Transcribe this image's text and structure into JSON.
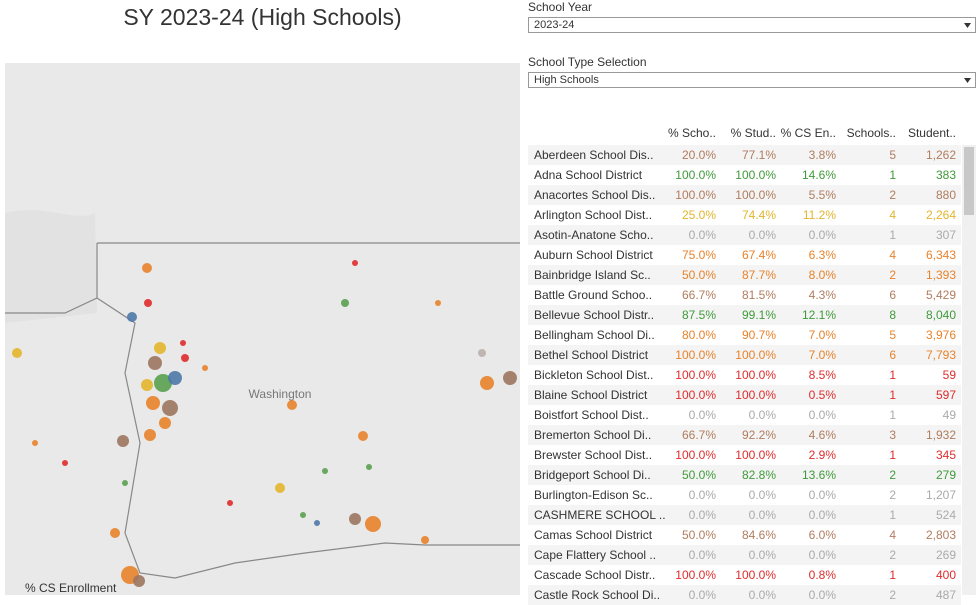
{
  "title": "SY 2023-24 (High Schools)",
  "filters": [
    {
      "label": "School Year",
      "value": "2023-24"
    },
    {
      "label": "School Type Selection",
      "value": "High Schools"
    }
  ],
  "map": {
    "label": "Washington",
    "legend_title": "% CS Enrollment"
  },
  "table": {
    "columns": [
      "% Scho..",
      "% Stud..",
      "% CS En..",
      "Schools..",
      "Student.."
    ],
    "rows": [
      {
        "name": "Aberdeen School Dis..",
        "cells": [
          "20.0%",
          "77.1%",
          "3.8%",
          "5",
          "1,262"
        ],
        "color": "#b07c5e"
      },
      {
        "name": "Adna School District",
        "cells": [
          "100.0%",
          "100.0%",
          "14.6%",
          "1",
          "383"
        ],
        "color": "#3f9a3a"
      },
      {
        "name": "Anacortes School Dis..",
        "cells": [
          "100.0%",
          "100.0%",
          "5.5%",
          "2",
          "880"
        ],
        "color": "#b07c5e"
      },
      {
        "name": "Arlington School Dist..",
        "cells": [
          "25.0%",
          "74.4%",
          "11.2%",
          "4",
          "2,264"
        ],
        "color": "#e3b52c"
      },
      {
        "name": "Asotin-Anatone Scho..",
        "cells": [
          "0.0%",
          "0.0%",
          "0.0%",
          "1",
          "307"
        ],
        "color": "#aaaaaa"
      },
      {
        "name": "Auburn School District",
        "cells": [
          "75.0%",
          "67.4%",
          "6.3%",
          "4",
          "6,343"
        ],
        "color": "#e8822a"
      },
      {
        "name": "Bainbridge Island Sc..",
        "cells": [
          "50.0%",
          "87.7%",
          "8.0%",
          "2",
          "1,393"
        ],
        "color": "#e8822a"
      },
      {
        "name": "Battle Ground Schoo..",
        "cells": [
          "66.7%",
          "81.5%",
          "4.3%",
          "6",
          "5,429"
        ],
        "color": "#b07c5e"
      },
      {
        "name": "Bellevue School Distr..",
        "cells": [
          "87.5%",
          "99.1%",
          "12.1%",
          "8",
          "8,040"
        ],
        "color": "#3f9a3a"
      },
      {
        "name": "Bellingham School Di..",
        "cells": [
          "80.0%",
          "90.7%",
          "7.0%",
          "5",
          "3,976"
        ],
        "color": "#e8822a"
      },
      {
        "name": "Bethel School District",
        "cells": [
          "100.0%",
          "100.0%",
          "7.0%",
          "6",
          "7,793"
        ],
        "color": "#e8822a"
      },
      {
        "name": "Bickleton School Dist..",
        "cells": [
          "100.0%",
          "100.0%",
          "8.5%",
          "1",
          "59"
        ],
        "color": "#e02c2c"
      },
      {
        "name": "Blaine School District",
        "cells": [
          "100.0%",
          "100.0%",
          "0.5%",
          "1",
          "597"
        ],
        "color": "#e02c2c"
      },
      {
        "name": "Boistfort School Dist..",
        "cells": [
          "0.0%",
          "0.0%",
          "0.0%",
          "1",
          "49"
        ],
        "color": "#aaaaaa"
      },
      {
        "name": "Bremerton School Di..",
        "cells": [
          "66.7%",
          "92.2%",
          "4.6%",
          "3",
          "1,932"
        ],
        "color": "#b07c5e"
      },
      {
        "name": "Brewster School Dist..",
        "cells": [
          "100.0%",
          "100.0%",
          "2.9%",
          "1",
          "345"
        ],
        "color": "#e02c2c"
      },
      {
        "name": "Bridgeport School Di..",
        "cells": [
          "50.0%",
          "82.8%",
          "13.6%",
          "2",
          "279"
        ],
        "color": "#3f9a3a"
      },
      {
        "name": "Burlington-Edison Sc..",
        "cells": [
          "0.0%",
          "0.0%",
          "0.0%",
          "2",
          "1,207"
        ],
        "color": "#aaaaaa"
      },
      {
        "name": "CASHMERE SCHOOL ..",
        "cells": [
          "0.0%",
          "0.0%",
          "0.0%",
          "1",
          "524"
        ],
        "color": "#aaaaaa"
      },
      {
        "name": "Camas School District",
        "cells": [
          "50.0%",
          "84.6%",
          "6.0%",
          "4",
          "2,803"
        ],
        "color": "#b07c5e"
      },
      {
        "name": "Cape Flattery School ..",
        "cells": [
          "0.0%",
          "0.0%",
          "0.0%",
          "2",
          "269"
        ],
        "color": "#aaaaaa"
      },
      {
        "name": "Cascade School Distr..",
        "cells": [
          "100.0%",
          "100.0%",
          "0.8%",
          "1",
          "400"
        ],
        "color": "#e02c2c"
      },
      {
        "name": "Castle Rock School Di..",
        "cells": [
          "0.0%",
          "0.0%",
          "0.0%",
          "2",
          "487"
        ],
        "color": "#aaaaaa"
      }
    ]
  }
}
